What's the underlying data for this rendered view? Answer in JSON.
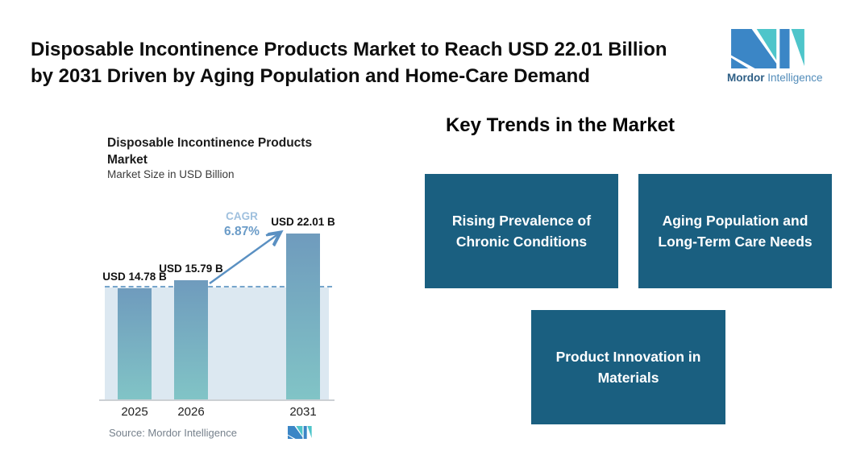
{
  "header": {
    "title_lines": [
      "Disposable Incontinence Products Market to Reach USD 22.01 Billion",
      "by 2031 Driven by Aging Population and Home-Care Demand"
    ],
    "logo": {
      "brand_bold": "Mordor",
      "brand_light": "Intelligence"
    }
  },
  "chart_data": {
    "type": "bar",
    "title": "Disposable Incontinence Products Market",
    "subtitle": "Market Size in USD Billion",
    "categories": [
      "2025",
      "2026",
      "2031"
    ],
    "values": [
      14.78,
      15.79,
      22.01
    ],
    "value_labels": [
      "USD 14.78 B",
      "USD 15.79 B",
      "USD 22.01 B"
    ],
    "cagr": {
      "label": "CAGR",
      "value": "6.87%"
    },
    "source": "Source: Mordor Intelligence",
    "xlabel": "",
    "ylabel": "Market Size in USD Billion",
    "ylim": [
      0,
      23
    ],
    "grid": "off",
    "legend": "off",
    "annotations": [
      "dashed reference line at 2025 level",
      "growth arrow from 2026 bar to 2031 bar"
    ],
    "colors": {
      "bar_top": "#6f9bbd",
      "bar_bottom": "#81c4c6",
      "plot_band": "#dce8f1",
      "dashed_line": "#76a5cb",
      "arrow": "#5a90c2",
      "cagr_label": "#9fc0de",
      "cagr_value": "#6b9cc8",
      "axis": "#ccd0d4"
    }
  },
  "key_trends": {
    "heading": "Key Trends in the Market",
    "box_color": "#1a5f80",
    "boxes": [
      {
        "label": "Rising Prevalence of Chronic Conditions"
      },
      {
        "label": "Aging Population and Long-Term Care Needs"
      },
      {
        "label": "Product Innovation in Materials"
      }
    ]
  },
  "brand_colors": {
    "blue": "#3b86c6",
    "teal": "#4ec5ca",
    "wordmark_bold": "#2d5e85",
    "wordmark_light": "#528cba"
  }
}
